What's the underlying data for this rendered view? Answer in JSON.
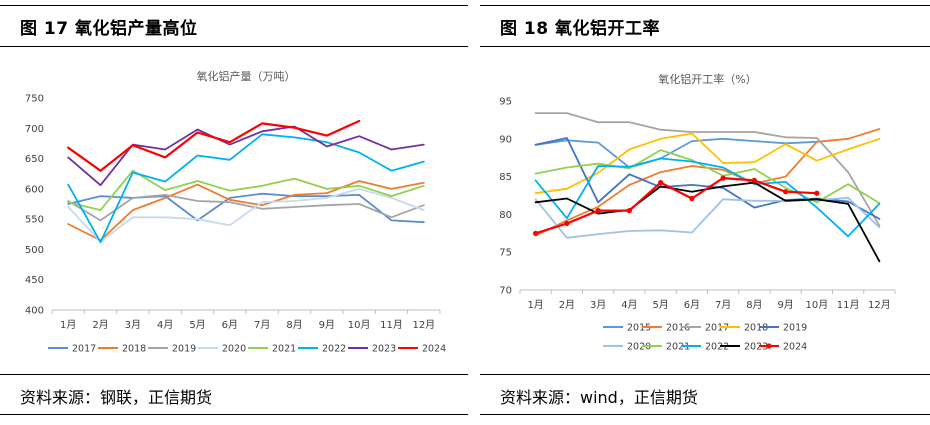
{
  "left": {
    "figure_title": "图 17  氧化铝产量高位",
    "source": "资料来源：钢联，正信期货"
  },
  "right": {
    "figure_title": "图 18   氧化铝开工率",
    "source": "资料来源：wind，正信期货"
  },
  "chart_data": [
    {
      "type": "line",
      "title": "氧化铝产量（万吨）",
      "categories": [
        "1月",
        "2月",
        "3月",
        "4月",
        "5月",
        "6月",
        "7月",
        "8月",
        "9月",
        "10月",
        "11月",
        "12月"
      ],
      "ylim": [
        400,
        750
      ],
      "yticks": [
        400,
        450,
        500,
        550,
        600,
        650,
        700,
        750
      ],
      "grid": false,
      "legend_position": "bottom",
      "series": [
        {
          "name": "2017",
          "color": "#5b8dce",
          "values": [
            575,
            588,
            585,
            588,
            548,
            585,
            592,
            588,
            588,
            590,
            548,
            545
          ]
        },
        {
          "name": "2018",
          "color": "#ed7d31",
          "values": [
            542,
            515,
            565,
            585,
            607,
            582,
            573,
            590,
            593,
            613,
            600,
            610
          ]
        },
        {
          "name": "2019",
          "color": "#a5a5a5",
          "values": [
            580,
            548,
            585,
            590,
            580,
            578,
            567,
            570,
            573,
            575,
            553,
            573
          ]
        },
        {
          "name": "2020",
          "color": "#c5d9ef",
          "values": [
            570,
            513,
            553,
            553,
            550,
            540,
            578,
            580,
            585,
            600,
            585,
            565
          ]
        },
        {
          "name": "2021",
          "color": "#92d050",
          "values": [
            578,
            565,
            630,
            598,
            613,
            597,
            605,
            617,
            600,
            605,
            588,
            605
          ]
        },
        {
          "name": "2022",
          "color": "#00b0f0",
          "values": [
            607,
            512,
            627,
            612,
            655,
            648,
            690,
            685,
            677,
            660,
            630,
            645
          ]
        },
        {
          "name": "2023",
          "color": "#7030a0",
          "values": [
            652,
            606,
            673,
            665,
            698,
            673,
            695,
            703,
            670,
            687,
            665,
            673
          ]
        },
        {
          "name": "2024",
          "color": "#ff0000",
          "values": [
            668,
            630,
            672,
            652,
            693,
            677,
            708,
            701,
            688,
            712,
            null,
            null
          ]
        }
      ]
    },
    {
      "type": "line",
      "title": "氧化铝开工率（%）",
      "categories": [
        "1月",
        "2月",
        "3月",
        "4月",
        "5月",
        "6月",
        "7月",
        "8月",
        "9月",
        "10月",
        "11月",
        "12月"
      ],
      "ylim": [
        70,
        95
      ],
      "yticks": [
        70,
        75,
        80,
        85,
        90,
        95
      ],
      "grid": false,
      "legend_position": "bottom",
      "series": [
        {
          "name": "2015",
          "color": "#5b9bd5",
          "values": [
            89.2,
            89.8,
            89.5,
            86.2,
            87.4,
            89.7,
            90.0,
            89.7,
            89.4,
            89.6,
            null,
            null
          ]
        },
        {
          "name": "2016",
          "color": "#ed7d31",
          "values": [
            77.2,
            79.2,
            81.0,
            83.9,
            85.6,
            86.4,
            85.9,
            84.1,
            85.0,
            89.6,
            90.0,
            91.3
          ]
        },
        {
          "name": "2017",
          "color": "#a5a5a5",
          "values": [
            93.4,
            93.4,
            92.2,
            92.2,
            91.2,
            90.9,
            90.9,
            90.9,
            90.2,
            90.1,
            85.6,
            78.5
          ]
        },
        {
          "name": "2018",
          "color": "#ffc000",
          "values": [
            82.8,
            83.4,
            85.5,
            88.6,
            90.0,
            90.7,
            86.8,
            86.9,
            89.3,
            87.1,
            88.6,
            90.0
          ]
        },
        {
          "name": "2019",
          "color": "#4472c4",
          "values": [
            89.2,
            90.1,
            81.6,
            85.3,
            83.6,
            83.9,
            83.5,
            80.9,
            81.9,
            82.1,
            81.7,
            79.4
          ]
        },
        {
          "name": "2020",
          "color": "#9dc3e6",
          "values": [
            82.0,
            76.9,
            77.4,
            77.8,
            77.9,
            77.6,
            82.0,
            81.8,
            81.8,
            81.9,
            82.2,
            78.3
          ]
        },
        {
          "name": "2021",
          "color": "#92d050",
          "values": [
            85.4,
            86.2,
            86.7,
            86.1,
            88.5,
            87.2,
            85.1,
            86.0,
            83.5,
            81.6,
            84.0,
            81.5
          ]
        },
        {
          "name": "2022",
          "color": "#00b0f0",
          "values": [
            84.5,
            79.5,
            86.4,
            86.3,
            87.4,
            87.0,
            86.2,
            84.0,
            84.3,
            80.9,
            77.1,
            81.4
          ]
        },
        {
          "name": "2023",
          "color": "#000000",
          "values": [
            81.6,
            82.1,
            80.1,
            80.6,
            83.7,
            83.0,
            83.7,
            84.2,
            81.8,
            82.0,
            81.4,
            73.8
          ]
        },
        {
          "name": "2024",
          "color": "#ff0000",
          "values": [
            77.5,
            78.8,
            80.5,
            80.5,
            84.2,
            82.1,
            84.8,
            84.5,
            83.0,
            82.8,
            null,
            null
          ],
          "markers": true
        }
      ]
    }
  ]
}
